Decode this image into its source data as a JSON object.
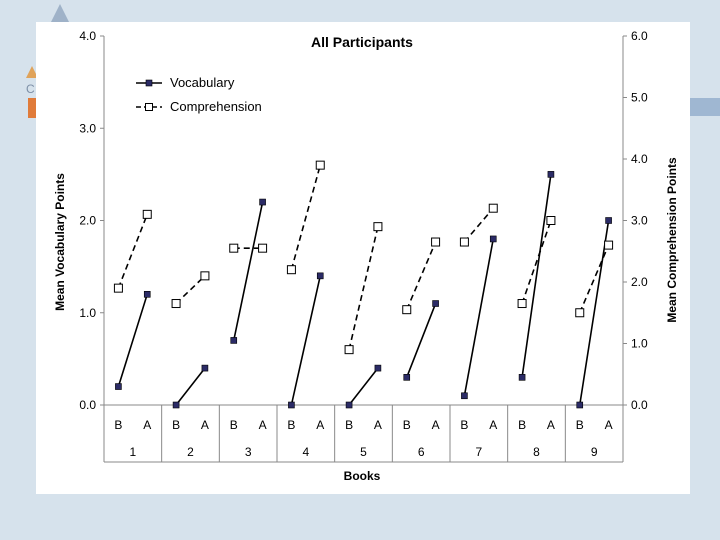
{
  "chart_data": {
    "type": "line",
    "title": "All Participants",
    "ylabel_left": "Mean Vocabulary Points",
    "ylabel_right": "Mean Comprehension Points",
    "xlabel": "Books",
    "ylim_left": [
      0,
      4
    ],
    "ylim_right": [
      0,
      6
    ],
    "yticks_left": [
      "0.0",
      "1.0",
      "2.0",
      "3.0",
      "4.0"
    ],
    "yticks_right": [
      "0.0",
      "1.0",
      "2.0",
      "3.0",
      "4.0",
      "5.0",
      "6.0"
    ],
    "groups": [
      "1",
      "2",
      "3",
      "4",
      "5",
      "6",
      "7",
      "8",
      "9"
    ],
    "subcategories": [
      "B",
      "A"
    ],
    "legend_position": "top-left",
    "series": [
      {
        "name": "Vocabulary",
        "axis": "left",
        "line_style": "solid",
        "marker": "filled-square",
        "values": [
          [
            0.2,
            1.2
          ],
          [
            0.0,
            0.4
          ],
          [
            0.7,
            2.2
          ],
          [
            0.0,
            1.4
          ],
          [
            0.0,
            0.4
          ],
          [
            0.3,
            1.1
          ],
          [
            0.1,
            1.8
          ],
          [
            0.3,
            2.5
          ],
          [
            0.0,
            2.0
          ]
        ]
      },
      {
        "name": "Comprehension",
        "axis": "right",
        "line_style": "dashed",
        "marker": "open-square",
        "values": [
          [
            1.9,
            3.1
          ],
          [
            1.65,
            2.1
          ],
          [
            2.55,
            2.55
          ],
          [
            2.2,
            3.9
          ],
          [
            0.9,
            2.9
          ],
          [
            1.55,
            2.65
          ],
          [
            2.65,
            3.2
          ],
          [
            1.65,
            3.0
          ],
          [
            1.5,
            2.6
          ]
        ]
      }
    ]
  },
  "colors": {
    "background": "#d6e2ec",
    "series": "#000000",
    "vocabulary_marker": "#2b2b66",
    "comprehension_marker": "#ffffff"
  }
}
